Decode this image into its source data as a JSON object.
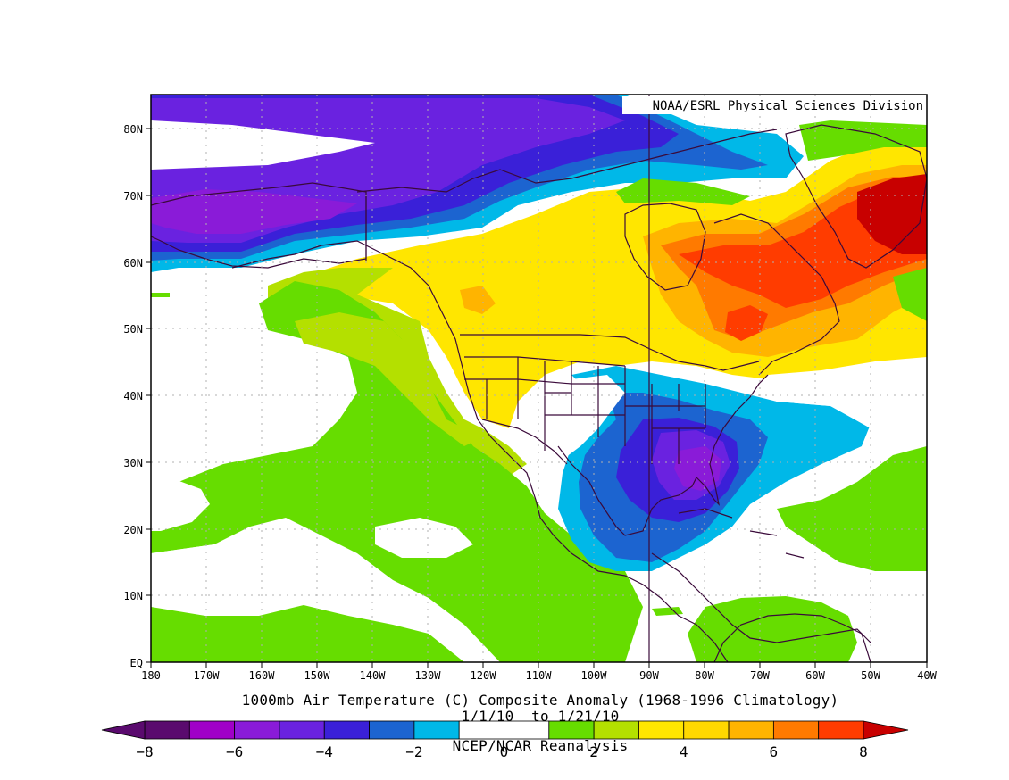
{
  "map": {
    "credit": "NOAA/ESRL Physical Sciences Division",
    "title_line1": "1000mb Air Temperature (C) Composite Anomaly (1968-1996 Climatology)",
    "title_line2": "1/1/10  to 1/21/10",
    "title_line3": "NCEP/NCAR Reanalysis",
    "lat_labels": [
      "80N",
      "70N",
      "60N",
      "50N",
      "40N",
      "30N",
      "20N",
      "10N",
      "EQ"
    ],
    "lon_labels": [
      "180",
      "170W",
      "160W",
      "150W",
      "140W",
      "130W",
      "120W",
      "110W",
      "100W",
      "90W",
      "80W",
      "70W",
      "60W",
      "50W",
      "40W"
    ]
  },
  "colorbar": {
    "labels": [
      "-8",
      "-6",
      "-4",
      "-2",
      "0",
      "2",
      "4",
      "6",
      "8"
    ],
    "colors": [
      "#5a0a6e",
      "#a000c8",
      "#8a1bd8",
      "#6a22e0",
      "#3a20d8",
      "#1c64d0",
      "#00b8e8",
      "#ffffff",
      "#ffffff",
      "#66dd00",
      "#b4e000",
      "#ffe600",
      "#ffd800",
      "#ffb400",
      "#ff7a00",
      "#ff3c00",
      "#c80000"
    ]
  },
  "legend_colors": {
    "c_m7": "#5a0a6e",
    "c_m6": "#a000c8",
    "c_m5": "#8a1bd8",
    "c_m4": "#6a22e0",
    "c_m3": "#3a20d8",
    "c_m2": "#1c64d0",
    "c_m1": "#00b8e8",
    "c_0": "#ffffff",
    "c_1": "#66dd00",
    "c_2": "#b4e000",
    "c_3": "#ffe600",
    "c_4": "#ffd800",
    "c_5": "#ffb400",
    "c_6": "#ff7a00",
    "c_7": "#ff3c00",
    "c_8": "#c80000"
  }
}
